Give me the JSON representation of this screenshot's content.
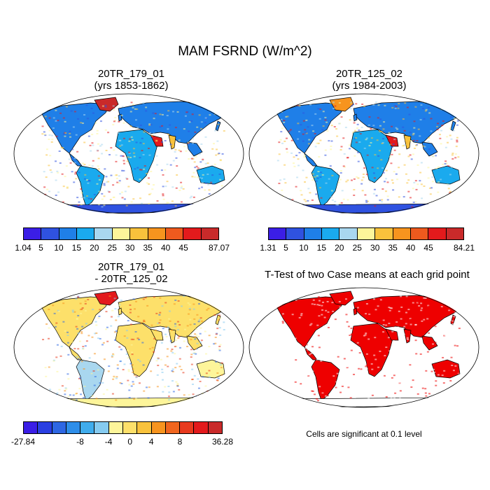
{
  "title": "MAM FSRND (W/m^2)",
  "panels": [
    {
      "title1": "20TR_179_01",
      "title2": "(yrs 1853-1862)"
    },
    {
      "title1": "20TR_125_02",
      "title2": "(yrs 1984-2003)"
    },
    {
      "title1": "20TR_179_01",
      "title2": "- 20TR_125_02"
    },
    {
      "title1": "T-Test of two Case means at each grid point",
      "title2": ""
    }
  ],
  "colorbar_abs_1": {
    "colors": [
      "#3b1ee6",
      "#2f52e0",
      "#1f7fe8",
      "#1aaaee",
      "#a9d7ef",
      "#fdf59a",
      "#f9c23c",
      "#f7941e",
      "#ee5a1e",
      "#e31a1c",
      "#c92a2a"
    ],
    "labels": [
      "1.04",
      "5",
      "10",
      "15",
      "20",
      "25",
      "30",
      "35",
      "40",
      "45",
      "87.07"
    ]
  },
  "colorbar_abs_2": {
    "colors": [
      "#3b1ee6",
      "#2f52e0",
      "#1f7fe8",
      "#1aaaee",
      "#a9d7ef",
      "#fdf59a",
      "#f9c23c",
      "#f7941e",
      "#ee5a1e",
      "#e31a1c",
      "#c92a2a"
    ],
    "labels": [
      "1.31",
      "5",
      "10",
      "15",
      "20",
      "25",
      "30",
      "35",
      "40",
      "45",
      "84.21"
    ]
  },
  "colorbar_diff": {
    "colors": [
      "#3b1ee6",
      "#2a3fe2",
      "#2e67e3",
      "#2e8ee9",
      "#40acec",
      "#86cbf0",
      "#fdf59a",
      "#fde06a",
      "#f9c23c",
      "#f7941e",
      "#f0651e",
      "#e83a1e",
      "#e31a1c",
      "#c92a2a"
    ],
    "labels": [
      "-27.84",
      "-8",
      "-4",
      "0",
      "4",
      "8",
      "36.28"
    ]
  },
  "sig_note": "Cells are significant at 0.1 level"
}
